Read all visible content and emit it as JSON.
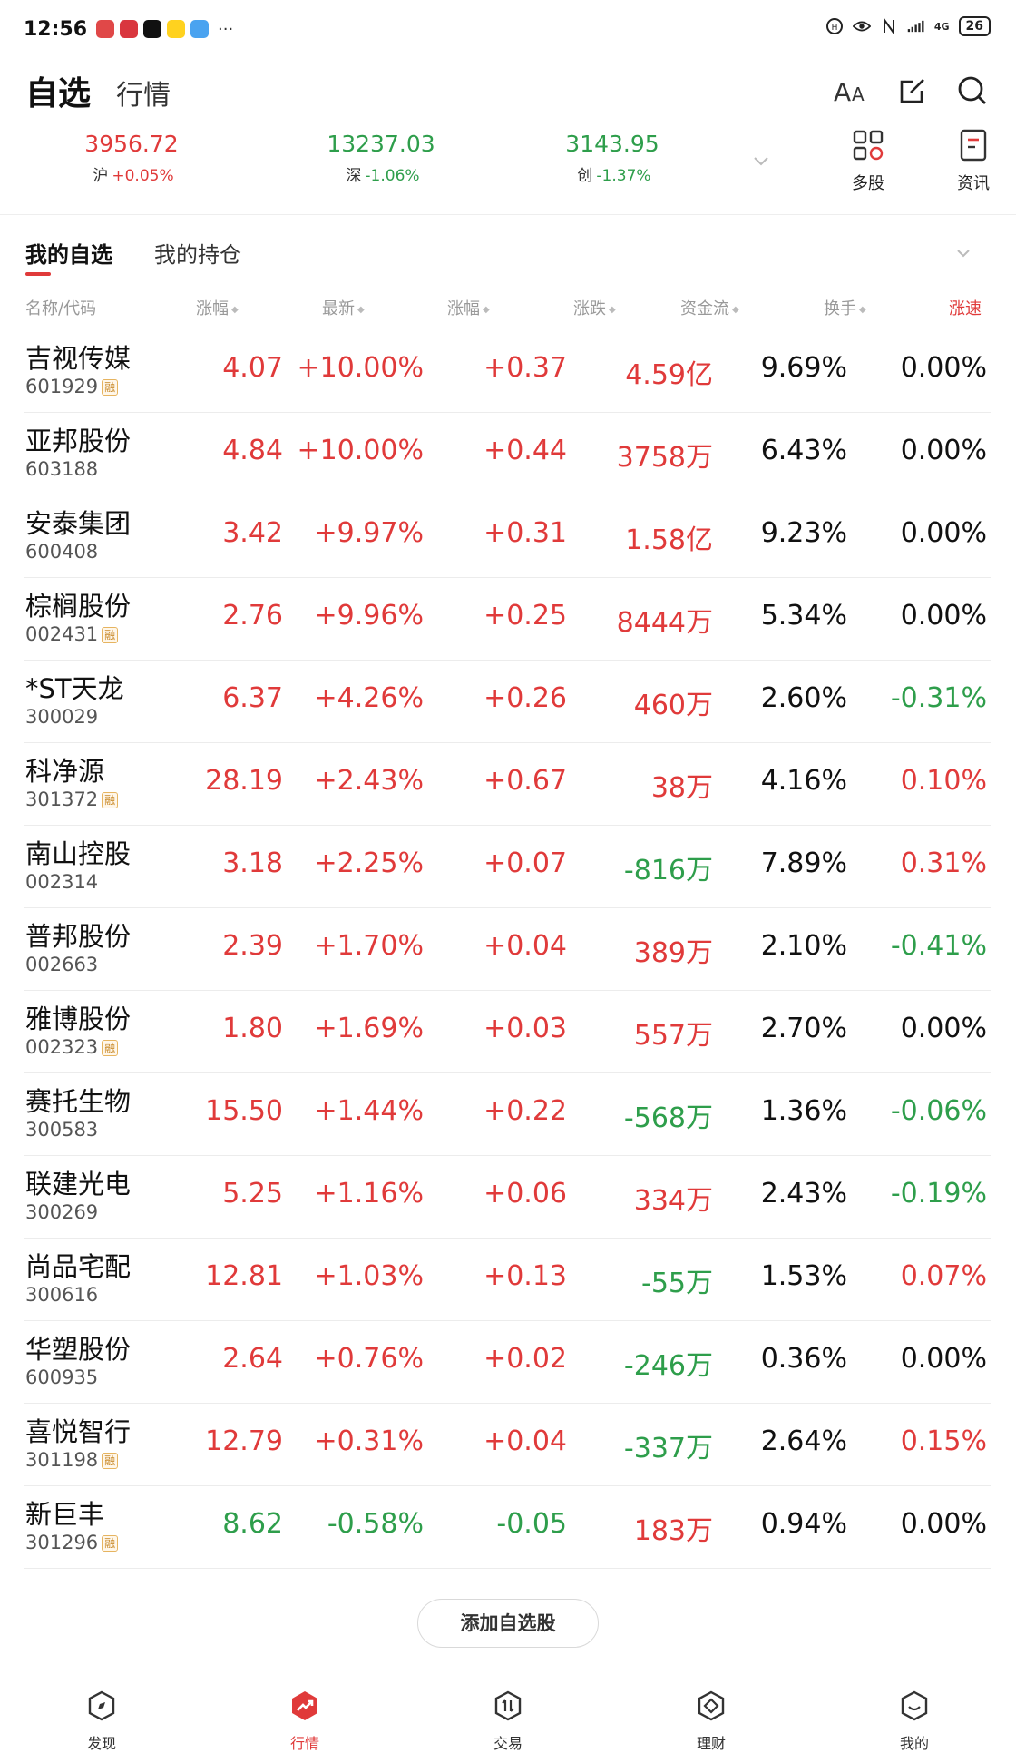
{
  "status_bar": {
    "time": "12:56",
    "more": "···",
    "network": "4G",
    "battery": "26"
  },
  "header": {
    "tab_active": "自选",
    "tab_other": "行情"
  },
  "indices": [
    {
      "value": "3956.72",
      "name": "沪",
      "change": "+0.05%",
      "color": "#e03a3a"
    },
    {
      "value": "13237.03",
      "name": "深",
      "change": "-1.06%",
      "color": "#2e9e4b"
    },
    {
      "value": "3143.95",
      "name": "创",
      "change": "-1.37%",
      "color": "#2e9e4b"
    }
  ],
  "tools": {
    "multi": "多股",
    "news": "资讯"
  },
  "subtabs": {
    "mine": "我的自选",
    "holdings": "我的持仓"
  },
  "columns": {
    "name": "名称/代码",
    "change_pct": "涨幅",
    "latest": "最新",
    "change_pct2": "涨幅",
    "change_amt": "涨跌",
    "fund_flow": "资金流",
    "turnover": "换手",
    "speed": "涨速"
  },
  "rong_label": "融",
  "stocks": [
    {
      "name": "吉视传媒",
      "code": "601929",
      "rong": true,
      "price": "4.07",
      "pct": "+10.00%",
      "chg": "+0.37",
      "flow": "4.59亿",
      "turnover": "9.69%",
      "speed": "0.00%",
      "dir": "up",
      "flow_dir": "up",
      "speed_dir": "flat"
    },
    {
      "name": "亚邦股份",
      "code": "603188",
      "rong": false,
      "price": "4.84",
      "pct": "+10.00%",
      "chg": "+0.44",
      "flow": "3758万",
      "turnover": "6.43%",
      "speed": "0.00%",
      "dir": "up",
      "flow_dir": "up",
      "speed_dir": "flat"
    },
    {
      "name": "安泰集团",
      "code": "600408",
      "rong": false,
      "price": "3.42",
      "pct": "+9.97%",
      "chg": "+0.31",
      "flow": "1.58亿",
      "turnover": "9.23%",
      "speed": "0.00%",
      "dir": "up",
      "flow_dir": "up",
      "speed_dir": "flat"
    },
    {
      "name": "棕榈股份",
      "code": "002431",
      "rong": true,
      "price": "2.76",
      "pct": "+9.96%",
      "chg": "+0.25",
      "flow": "8444万",
      "turnover": "5.34%",
      "speed": "0.00%",
      "dir": "up",
      "flow_dir": "up",
      "speed_dir": "flat"
    },
    {
      "name": "*ST天龙",
      "code": "300029",
      "rong": false,
      "price": "6.37",
      "pct": "+4.26%",
      "chg": "+0.26",
      "flow": "460万",
      "turnover": "2.60%",
      "speed": "-0.31%",
      "dir": "up",
      "flow_dir": "up",
      "speed_dir": "down"
    },
    {
      "name": "科净源",
      "code": "301372",
      "rong": true,
      "price": "28.19",
      "pct": "+2.43%",
      "chg": "+0.67",
      "flow": "38万",
      "turnover": "4.16%",
      "speed": "0.10%",
      "dir": "up",
      "flow_dir": "up",
      "speed_dir": "up"
    },
    {
      "name": "南山控股",
      "code": "002314",
      "rong": false,
      "price": "3.18",
      "pct": "+2.25%",
      "chg": "+0.07",
      "flow": "-816万",
      "turnover": "7.89%",
      "speed": "0.31%",
      "dir": "up",
      "flow_dir": "down",
      "speed_dir": "up"
    },
    {
      "name": "普邦股份",
      "code": "002663",
      "rong": false,
      "price": "2.39",
      "pct": "+1.70%",
      "chg": "+0.04",
      "flow": "389万",
      "turnover": "2.10%",
      "speed": "-0.41%",
      "dir": "up",
      "flow_dir": "up",
      "speed_dir": "down"
    },
    {
      "name": "雅博股份",
      "code": "002323",
      "rong": true,
      "price": "1.80",
      "pct": "+1.69%",
      "chg": "+0.03",
      "flow": "557万",
      "turnover": "2.70%",
      "speed": "0.00%",
      "dir": "up",
      "flow_dir": "up",
      "speed_dir": "flat"
    },
    {
      "name": "赛托生物",
      "code": "300583",
      "rong": false,
      "price": "15.50",
      "pct": "+1.44%",
      "chg": "+0.22",
      "flow": "-568万",
      "turnover": "1.36%",
      "speed": "-0.06%",
      "dir": "up",
      "flow_dir": "down",
      "speed_dir": "down"
    },
    {
      "name": "联建光电",
      "code": "300269",
      "rong": false,
      "price": "5.25",
      "pct": "+1.16%",
      "chg": "+0.06",
      "flow": "334万",
      "turnover": "2.43%",
      "speed": "-0.19%",
      "dir": "up",
      "flow_dir": "up",
      "speed_dir": "down"
    },
    {
      "name": "尚品宅配",
      "code": "300616",
      "rong": false,
      "price": "12.81",
      "pct": "+1.03%",
      "chg": "+0.13",
      "flow": "-55万",
      "turnover": "1.53%",
      "speed": "0.07%",
      "dir": "up",
      "flow_dir": "down",
      "speed_dir": "up"
    },
    {
      "name": "华塑股份",
      "code": "600935",
      "rong": false,
      "price": "2.64",
      "pct": "+0.76%",
      "chg": "+0.02",
      "flow": "-246万",
      "turnover": "0.36%",
      "speed": "0.00%",
      "dir": "up",
      "flow_dir": "down",
      "speed_dir": "flat"
    },
    {
      "name": "喜悦智行",
      "code": "301198",
      "rong": true,
      "price": "12.79",
      "pct": "+0.31%",
      "chg": "+0.04",
      "flow": "-337万",
      "turnover": "2.64%",
      "speed": "0.15%",
      "dir": "up",
      "flow_dir": "down",
      "speed_dir": "up"
    },
    {
      "name": "新巨丰",
      "code": "301296",
      "rong": true,
      "price": "8.62",
      "pct": "-0.58%",
      "chg": "-0.05",
      "flow": "183万",
      "turnover": "0.94%",
      "speed": "0.00%",
      "dir": "down",
      "flow_dir": "up",
      "speed_dir": "flat"
    }
  ],
  "add_button": "添加自选股",
  "bottom_nav": [
    {
      "label": "发现",
      "active": false
    },
    {
      "label": "行情",
      "active": true
    },
    {
      "label": "交易",
      "active": false
    },
    {
      "label": "理财",
      "active": false
    },
    {
      "label": "我的",
      "active": false
    }
  ],
  "colors": {
    "up": "#e03a3a",
    "down": "#2e9e4b",
    "flat": "#111111",
    "accent": "#e03a3a"
  }
}
